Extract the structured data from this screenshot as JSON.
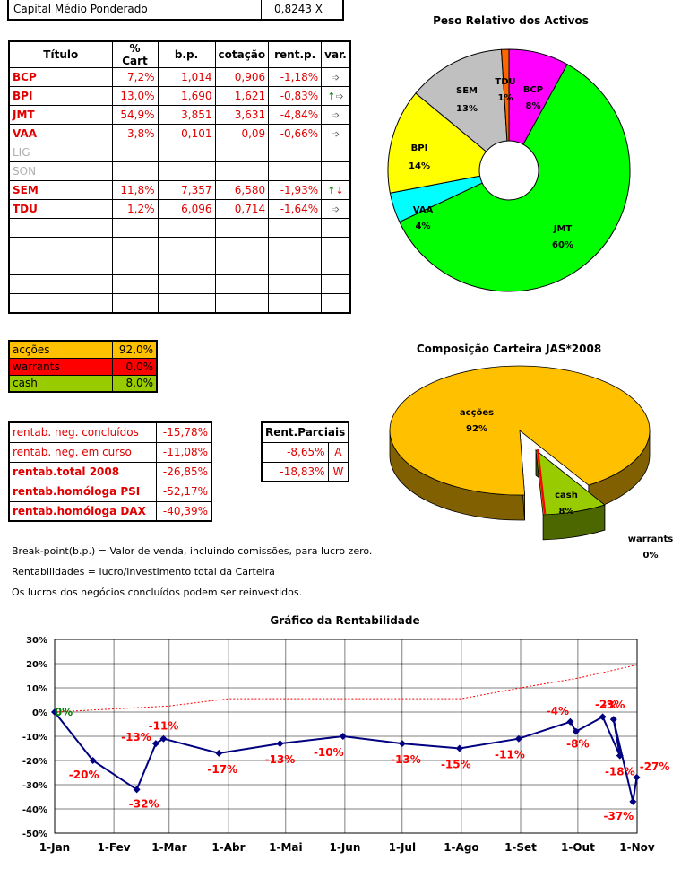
{
  "capital": {
    "label": "Capital Médio Ponderado",
    "value": "0,8243 X"
  },
  "titulos": {
    "headers": [
      "Título",
      "% Cart",
      "b.p.",
      "cotação",
      "rent.p.",
      "var."
    ],
    "rows": [
      {
        "titulo": "BCP",
        "cart": "7,2%",
        "bp": "1,014",
        "cot": "0,906",
        "rent": "-1,18%",
        "var": "right"
      },
      {
        "titulo": "BPI",
        "cart": "13,0%",
        "bp": "1,690",
        "cot": "1,621",
        "rent": "-0,83%",
        "var": "up-right"
      },
      {
        "titulo": "JMT",
        "cart": "54,9%",
        "bp": "3,851",
        "cot": "3,631",
        "rent": "-4,84%",
        "var": "right"
      },
      {
        "titulo": "VAA",
        "cart": "3,8%",
        "bp": "0,101",
        "cot": "0,09",
        "rent": "-0,66%",
        "var": "right"
      },
      {
        "titulo": "LIG",
        "cart": "",
        "bp": "",
        "cot": "",
        "rent": "",
        "var": ""
      },
      {
        "titulo": "SON",
        "cart": "",
        "bp": "",
        "cot": "",
        "rent": "",
        "var": ""
      },
      {
        "titulo": "SEM",
        "cart": "11,8%",
        "bp": "7,357",
        "cot": "6,580",
        "rent": "-1,93%",
        "var": "up-down"
      },
      {
        "titulo": "TDU",
        "cart": "1,2%",
        "bp": "6,096",
        "cot": "0,714",
        "rent": "-1,64%",
        "var": "right"
      },
      {
        "titulo": "",
        "cart": "",
        "bp": "",
        "cot": "",
        "rent": "",
        "var": ""
      },
      {
        "titulo": "",
        "cart": "",
        "bp": "",
        "cot": "",
        "rent": "",
        "var": ""
      },
      {
        "titulo": "",
        "cart": "",
        "bp": "",
        "cot": "",
        "rent": "",
        "var": ""
      },
      {
        "titulo": "",
        "cart": "",
        "bp": "",
        "cot": "",
        "rent": "",
        "var": ""
      },
      {
        "titulo": "",
        "cart": "",
        "bp": "",
        "cot": "",
        "rent": "",
        "var": ""
      }
    ]
  },
  "allocation": [
    {
      "label": "acções",
      "value": "92,0%",
      "color": "#ffc000",
      "text_color": "#000000"
    },
    {
      "label": "warrants",
      "value": "0,0%",
      "color": "#ff0000",
      "text_color": "#000000"
    },
    {
      "label": "cash",
      "value": "8,0%",
      "color": "#99cc00",
      "text_color": "#000000"
    }
  ],
  "rentab": [
    {
      "label": "rentab. neg. concluídos",
      "value": "-15,78%",
      "bold": false
    },
    {
      "label": "rentab. neg. em curso",
      "value": "-11,08%",
      "bold": false
    },
    {
      "label": "rentab.total 2008",
      "value": "-26,85%",
      "bold": true
    },
    {
      "label": "rentab.homóloga PSI",
      "value": "-52,17%",
      "bold": true
    },
    {
      "label": "rentab.homóloga DAX",
      "value": "-40,39%",
      "bold": true
    }
  ],
  "parciais": {
    "header": "Rent.Parciais",
    "rows": [
      {
        "value": "-8,65%",
        "code": "A"
      },
      {
        "value": "-18,83%",
        "code": "W"
      }
    ]
  },
  "notes": [
    "Break-point(b.p.) = Valor de venda, incluindo comissões, para lucro zero.",
    "Rentabilidades = lucro/investimento total da Carteira",
    "Os lucros dos negócios concluídos podem ser reinvestidos."
  ],
  "chart_data": [
    {
      "type": "pie",
      "title": "Peso Relativo dos Activos",
      "slices": [
        {
          "label": "BCP",
          "value": 8,
          "display": "8%",
          "color": "#ff00ff"
        },
        {
          "label": "JMT",
          "value": 60,
          "display": "60%",
          "color": "#00ff00"
        },
        {
          "label": "VAA",
          "value": 4,
          "display": "4%",
          "color": "#00ffff"
        },
        {
          "label": "BPI",
          "value": 14,
          "display": "14%",
          "color": "#ffff00"
        },
        {
          "label": "SEM",
          "value": 13,
          "display": "13%",
          "color": "#c0c0c0"
        },
        {
          "label": "TDU",
          "value": 1,
          "display": "1%",
          "color": "#ff6600"
        }
      ],
      "donut": true
    },
    {
      "type": "pie",
      "title": "Composição Carteira JAS*2008",
      "slices": [
        {
          "label": "acções",
          "value": 92,
          "display": "92%",
          "color": "#ffc000"
        },
        {
          "label": "cash",
          "value": 8,
          "display": "8%",
          "color": "#99cc00"
        },
        {
          "label": "warrants",
          "value": 0,
          "display": "0%",
          "color": "#ff0000"
        }
      ],
      "three_d": true
    },
    {
      "type": "line",
      "title": "Gráfico da Rentabilidade",
      "x_labels": [
        "1-Jan",
        "1-Fev",
        "1-Mar",
        "1-Abr",
        "1-Mai",
        "1-Jun",
        "1-Jul",
        "1-Ago",
        "1-Set",
        "1-Out",
        "1-Nov"
      ],
      "ylim": [
        -50,
        30
      ],
      "y_ticks": [
        "30%",
        "20%",
        "10%",
        "0%",
        "-10%",
        "-20%",
        "-30%",
        "-40%",
        "-50%"
      ],
      "grid": true,
      "series": [
        {
          "color": "#000080",
          "points": [
            {
              "x": "1-Jan",
              "y": 0,
              "label": "0%",
              "label_color": "#008000"
            },
            {
              "x": "2008-01-21",
              "y": -20,
              "label": "-20%"
            },
            {
              "x": "2008-02-13",
              "y": -32,
              "label": "-32%"
            },
            {
              "x": "2008-02-23",
              "y": -13,
              "label": "-13%"
            },
            {
              "x": "2008-02-27",
              "y": -11,
              "label": "-11%"
            },
            {
              "x": "2008-03-27",
              "y": -17,
              "label": "-17%"
            },
            {
              "x": "2008-04-28",
              "y": -13,
              "label": "-13%"
            },
            {
              "x": "2008-05-31",
              "y": -10,
              "label": "-10%"
            },
            {
              "x": "2008-07-01",
              "y": -13,
              "label": "-13%"
            },
            {
              "x": "2008-07-31",
              "y": -15,
              "label": "-15%"
            },
            {
              "x": "2008-08-31",
              "y": -11,
              "label": "-11%"
            },
            {
              "x": "2008-09-27",
              "y": -4,
              "label": "-4%"
            },
            {
              "x": "2008-09-30",
              "y": -8,
              "label": "-8%"
            },
            {
              "x": "2008-10-14",
              "y": -2,
              "label": "-2%"
            },
            {
              "x": "2008-10-23",
              "y": -18,
              "label": "-18%"
            },
            {
              "x": "2008-11-05",
              "y": -3,
              "label": "-3%"
            },
            {
              "x": "2008-12-11",
              "y": -37,
              "label": "-37%"
            },
            {
              "x": "2008-12-18",
              "y": -27,
              "label": "-27%"
            }
          ]
        },
        {
          "color": "#ff0000",
          "dashed": true,
          "points": [
            {
              "x": "1-Jan",
              "y": 0
            },
            {
              "x": "1-Mar",
              "y": 2.5
            },
            {
              "x": "1-Abr",
              "y": 5.5
            },
            {
              "x": "1-Ago",
              "y": 5.5
            },
            {
              "x": "1-Set",
              "y": 10
            },
            {
              "x": "1-Out",
              "y": 14
            },
            {
              "x": "1-Nov",
              "y": 19.5
            }
          ]
        }
      ],
      "label_color": "#ff0000"
    }
  ]
}
